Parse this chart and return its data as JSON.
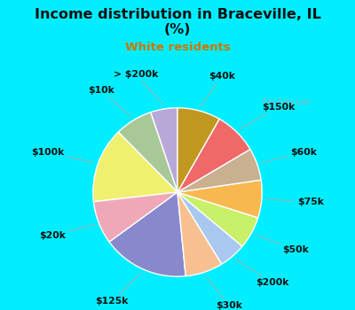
{
  "title_line1": "Income distribution in Braceville, IL",
  "title_line2": "(%)",
  "subtitle": "White residents",
  "title_color": "#111111",
  "subtitle_color": "#cc7700",
  "bg_cyan": "#00eeff",
  "bg_chart": "#d8f0e8",
  "labels": [
    "> $200k",
    "$10k",
    "$100k",
    "$20k",
    "$125k",
    "$30k",
    "$200k",
    "$50k",
    "$75k",
    "$60k",
    "$150k",
    "$40k"
  ],
  "values": [
    5,
    7,
    14,
    8,
    16,
    7,
    5,
    6,
    7,
    6,
    8,
    8
  ],
  "colors": [
    "#b8a8d8",
    "#a8c898",
    "#f0f070",
    "#f0a8b8",
    "#8888cc",
    "#f8c090",
    "#a8c8f0",
    "#c8f068",
    "#f8b850",
    "#c8b090",
    "#f06868",
    "#c09820"
  ],
  "wedge_edge_color": "white",
  "label_fontsize": 7.8,
  "label_color": "#111111"
}
